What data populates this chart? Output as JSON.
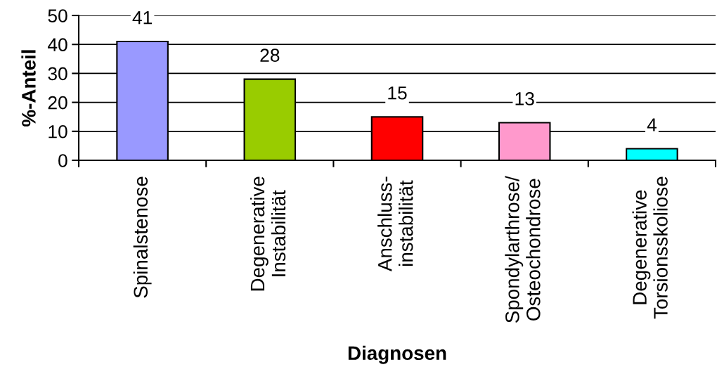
{
  "chart_data": {
    "type": "bar",
    "xlabel": "Diagnosen",
    "ylabel": "%-Anteil",
    "categories": [
      "Spinalstenose",
      "Degenerative\nInstabilität",
      "Anschluss-\ninstabilität",
      "Spondylarthrose/\nOsteochondrose",
      "Degenerative\nTorsionsskoliose"
    ],
    "values": [
      41,
      28,
      15,
      13,
      4
    ],
    "colors": [
      "#9999ff",
      "#99cc00",
      "#ff0000",
      "#ff99cc",
      "#00ffff"
    ],
    "ylim": [
      0,
      50
    ],
    "yticks": [
      0,
      10,
      20,
      30,
      40,
      50
    ],
    "grid": "y",
    "data_labels": true
  }
}
